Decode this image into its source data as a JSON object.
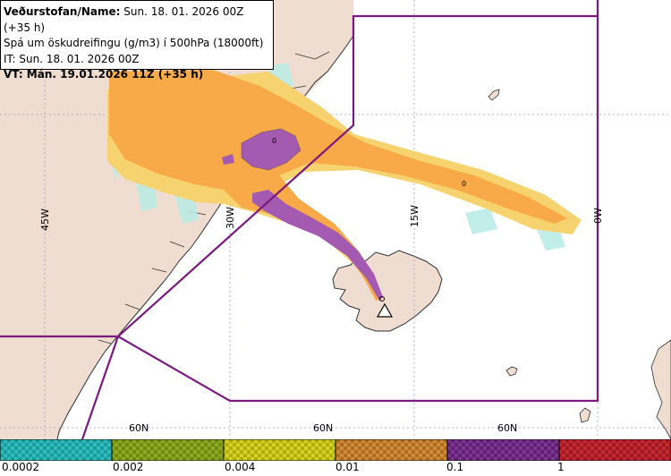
{
  "info": {
    "line1_label": "Veðurstofan/Name:",
    "line1_value": " Sun. 18. 01. 2026 00Z (+35 h)",
    "line2": "Spá um öskudreifingu (g/m3) í 500hPa (18000ft)",
    "line3": "IT: Sun. 18. 01. 2026 00Z",
    "line4": "VT: Mán. 19.01.2026 11Z (+35 h)"
  },
  "map": {
    "longitude_labels": [
      "45W",
      "30W",
      "15W",
      "0W"
    ],
    "latitude_labels": [
      "60N",
      "60N",
      "60N"
    ],
    "contour_labels": [
      "0",
      "0"
    ],
    "colors": {
      "sea": "#ffffff",
      "land": "#eeddd0",
      "grid": "#9aa0b8",
      "coast": "#2f2f2f",
      "boundary": "#7a1a7e",
      "ash_low": "#f6d36f",
      "ash_mid": "#f7aa47",
      "ash_high": "#a45ab0",
      "ash_trace": "#b8ece6"
    }
  },
  "legend": {
    "bins": [
      {
        "color": "#2fbcbc",
        "dark": "#1f9a9a"
      },
      {
        "color": "#8faa22",
        "dark": "#6f8a12"
      },
      {
        "color": "#d6d224",
        "dark": "#b2ae12"
      },
      {
        "color": "#d08b3a",
        "dark": "#ac6d22"
      },
      {
        "color": "#7f3591",
        "dark": "#5f2271"
      },
      {
        "color": "#c52a33",
        "dark": "#a01a22"
      }
    ],
    "labels": [
      "0.0002",
      "0.002",
      "0.004",
      "0.01",
      "0.1",
      "1"
    ]
  }
}
